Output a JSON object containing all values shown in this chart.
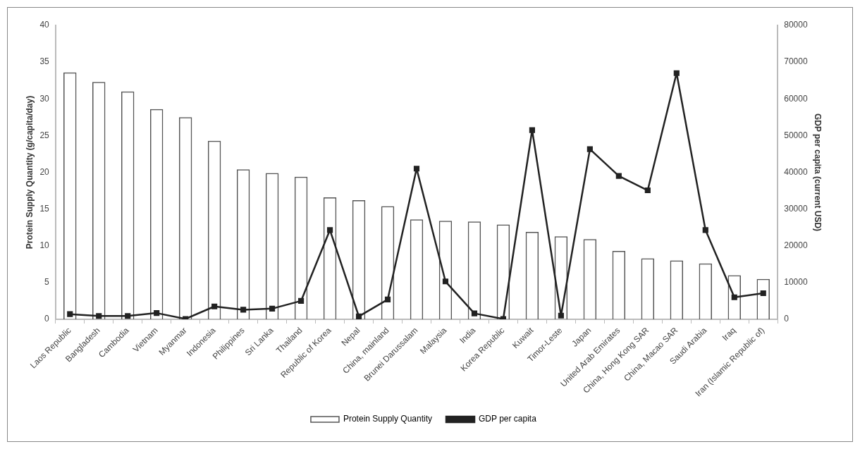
{
  "chart_data": {
    "type": "bar",
    "categories": [
      "Laos Republic",
      "Bangladesh",
      "Cambodia",
      "Vietnam",
      "Myanmar",
      "Indonesia",
      "Philippines",
      "Sri Lanka",
      "Thailand",
      "Republic of Korea",
      "Nepal",
      "China, mainland",
      "Brunei Darussalam",
      "Malaysia",
      "India",
      "Korea Republic",
      "Kuwait",
      "Timor-Leste",
      "Japan",
      "United Arab Emirates",
      "China, Hong Kong SAR",
      "China, Macao SAR",
      "Saudi Arabia",
      "Iraq",
      "Iran (Islamic Republic of)"
    ],
    "series": [
      {
        "name": "Protein Supply Quantity",
        "color": "#555555",
        "values": [
          33.6,
          32.3,
          31.0,
          28.6,
          27.5,
          24.3,
          20.4,
          19.9,
          19.4,
          16.6,
          16.2,
          15.4,
          13.6,
          13.4,
          13.3,
          12.9,
          11.9,
          11.3,
          10.9,
          9.3,
          8.3,
          8.0,
          7.6,
          6.0,
          5.5
        ]
      },
      {
        "name": "GDP per capita",
        "type": "line",
        "axis": "y2",
        "color": "#222222",
        "marker": "square",
        "values": [
          1400,
          900,
          900,
          1700,
          100,
          3500,
          2600,
          2900,
          5000,
          24300,
          800,
          5400,
          41000,
          10300,
          1600,
          100,
          51500,
          1000,
          46300,
          39000,
          35100,
          67000,
          24300,
          6000,
          7100
        ]
      }
    ],
    "ylabel": "Protein Supply Quantity (g/capita/day)",
    "y2label": "GDP per capita (current USD)",
    "ylim": [
      0,
      40
    ],
    "yticks": [
      0,
      5,
      10,
      15,
      20,
      25,
      30,
      35,
      40
    ],
    "y2lim": [
      0,
      80000
    ],
    "y2ticks": [
      0,
      10000,
      20000,
      30000,
      40000,
      50000,
      60000,
      70000,
      80000
    ],
    "grid": false,
    "legend": "bottom"
  }
}
